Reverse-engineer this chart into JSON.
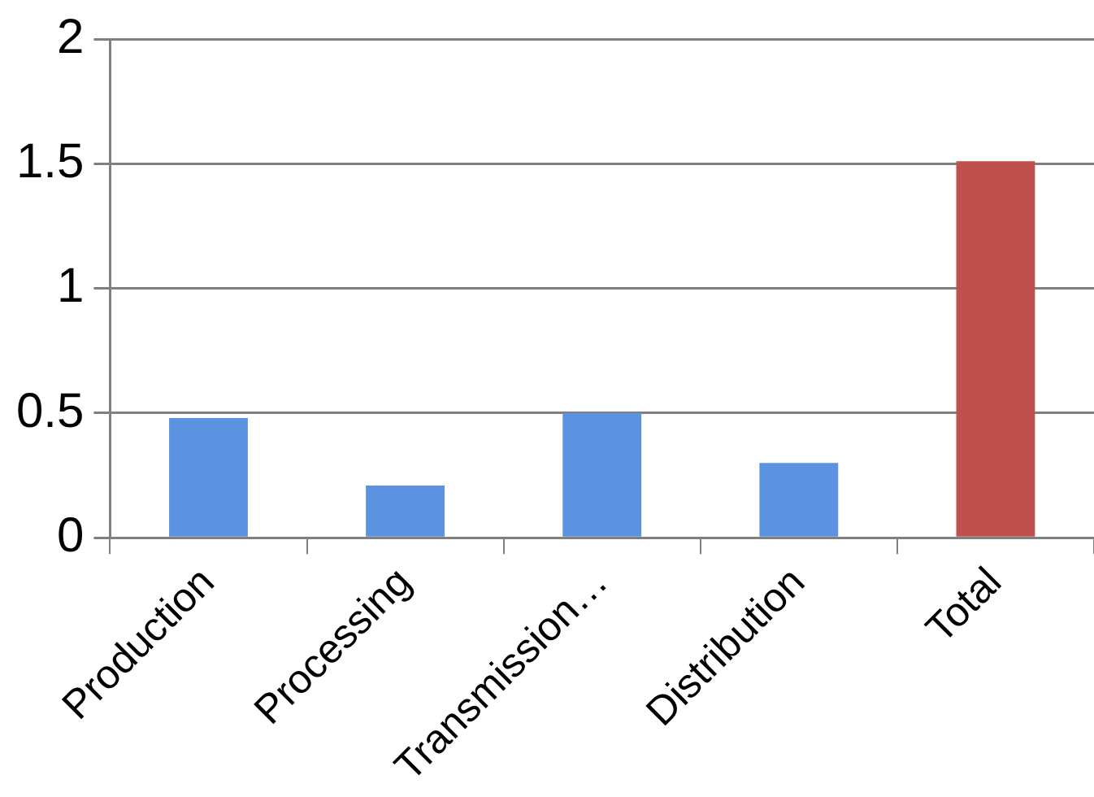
{
  "chart_data": {
    "type": "bar",
    "categories": [
      "Production",
      "Processing",
      "Transmission…",
      "Distribution",
      "Total"
    ],
    "values": [
      0.48,
      0.21,
      0.5,
      0.3,
      1.51
    ],
    "colors": [
      "#5b93e0",
      "#5b93e0",
      "#5b93e0",
      "#5b93e0",
      "#c0504d"
    ],
    "ylim": [
      0,
      2
    ],
    "yticks": [
      0,
      0.5,
      1,
      1.5,
      2
    ],
    "grid": "y",
    "legend": false
  }
}
